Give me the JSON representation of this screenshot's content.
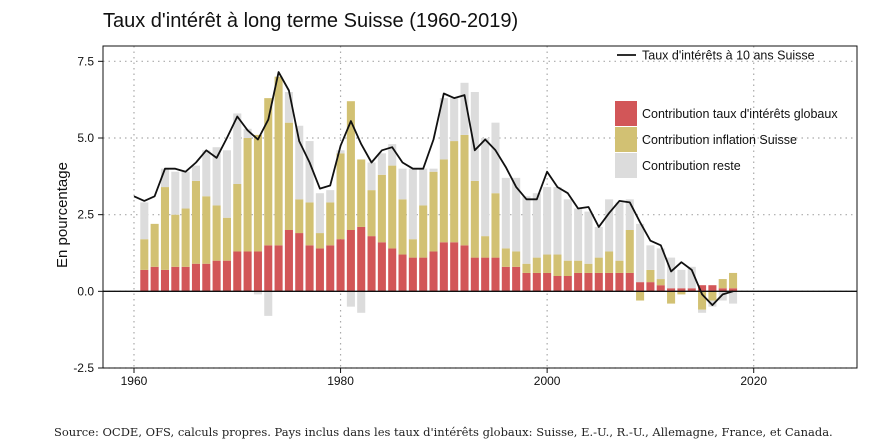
{
  "title": "Taux d'intérêt à long terme Suisse (1960-2019)",
  "source": "Source: OCDE, OFS, calculs propres. Pays inclus dans les taux d'intérêts globaux: Suisse, E.-U., R.-U., Allemagne, France, et Canada.",
  "chart_data": {
    "type": "bar",
    "stacked": true,
    "ylabel": "En pourcentage",
    "xlabel": "",
    "xlim": [
      1957,
      2030
    ],
    "ylim": [
      -2.5,
      8.0
    ],
    "x_ticks": [
      1960,
      1980,
      2000,
      2020
    ],
    "y_ticks": [
      -2.5,
      0.0,
      2.5,
      5.0,
      7.5
    ],
    "y_tick_labels": [
      "-2.5",
      "0.0",
      "2.5",
      "5.0",
      "7.5"
    ],
    "grid": "dotted",
    "legend_line": "top-right",
    "legend_bars": "right",
    "colors": {
      "global": "#d25658",
      "inflation": "#d2c173",
      "reste": "#dcdcdc",
      "line": "#111111"
    },
    "years": [
      1960,
      1961,
      1962,
      1963,
      1964,
      1965,
      1966,
      1967,
      1968,
      1969,
      1970,
      1971,
      1972,
      1973,
      1974,
      1975,
      1976,
      1977,
      1978,
      1979,
      1980,
      1981,
      1982,
      1983,
      1984,
      1985,
      1986,
      1987,
      1988,
      1989,
      1990,
      1991,
      1992,
      1993,
      1994,
      1995,
      1996,
      1997,
      1998,
      1999,
      2000,
      2001,
      2002,
      2003,
      2004,
      2005,
      2006,
      2007,
      2008,
      2009,
      2010,
      2011,
      2012,
      2013,
      2014,
      2015,
      2016,
      2017,
      2018
    ],
    "series": [
      {
        "name": "Contribution taux d'intérêts globaux",
        "key": "global",
        "values": [
          null,
          0.7,
          0.8,
          0.7,
          0.8,
          0.8,
          0.9,
          0.9,
          1.0,
          1.0,
          1.3,
          1.3,
          1.3,
          1.5,
          1.5,
          2.0,
          1.9,
          1.5,
          1.4,
          1.5,
          1.7,
          2.0,
          2.1,
          1.8,
          1.6,
          1.4,
          1.2,
          1.1,
          1.1,
          1.3,
          1.6,
          1.6,
          1.5,
          1.1,
          1.1,
          1.1,
          0.8,
          0.8,
          0.6,
          0.6,
          0.6,
          0.5,
          0.5,
          0.6,
          0.6,
          0.6,
          0.6,
          0.6,
          0.6,
          0.3,
          0.3,
          0.2,
          0.1,
          0.1,
          0.1,
          0.2,
          0.2,
          0.1,
          0.1
        ]
      },
      {
        "name": "Contribution inflation Suisse",
        "key": "inflation",
        "values": [
          null,
          1.0,
          1.4,
          2.7,
          1.7,
          1.9,
          2.7,
          2.2,
          1.8,
          1.4,
          2.2,
          3.7,
          3.8,
          4.8,
          5.5,
          3.5,
          1.1,
          1.4,
          0.5,
          1.4,
          2.8,
          4.2,
          2.2,
          1.5,
          2.2,
          2.7,
          1.8,
          0.6,
          1.7,
          2.6,
          2.7,
          3.3,
          3.6,
          2.5,
          0.7,
          2.1,
          0.6,
          0.5,
          0.3,
          0.5,
          0.6,
          0.7,
          0.5,
          0.4,
          0.3,
          0.5,
          0.7,
          0.4,
          1.4,
          -0.3,
          0.4,
          0.2,
          -0.4,
          -0.1,
          0.0,
          -0.6,
          -0.3,
          0.3,
          0.5
        ]
      },
      {
        "name": "Contribution reste",
        "key": "reste",
        "values": [
          null,
          1.2,
          0.0,
          0.6,
          1.4,
          1.2,
          0.5,
          1.5,
          1.9,
          2.2,
          2.3,
          0.3,
          -0.1,
          -0.8,
          0.0,
          1.0,
          2.4,
          2.0,
          1.3,
          0.4,
          0.1,
          -0.5,
          -0.7,
          0.9,
          0.7,
          0.7,
          1.0,
          2.3,
          1.2,
          0.1,
          2.0,
          1.4,
          1.7,
          2.9,
          3.2,
          2.3,
          2.3,
          2.4,
          2.2,
          2.1,
          2.2,
          2.2,
          2.0,
          1.7,
          1.7,
          1.0,
          1.7,
          1.9,
          1.0,
          1.9,
          0.8,
          1.0,
          1.0,
          0.6,
          0.7,
          -0.1,
          -0.2,
          -0.3,
          -0.4
        ]
      },
      {
        "name": "Taux d'intérêts à 10 ans Suisse",
        "key": "line",
        "type": "line",
        "values": [
          3.1,
          2.95,
          3.1,
          4.0,
          4.0,
          3.9,
          4.2,
          4.6,
          4.35,
          5.0,
          5.7,
          5.25,
          4.95,
          5.6,
          7.15,
          6.55,
          4.9,
          4.2,
          3.35,
          3.45,
          4.75,
          5.55,
          4.8,
          4.2,
          4.6,
          4.7,
          4.2,
          4.0,
          4.0,
          4.95,
          6.45,
          6.3,
          6.4,
          4.6,
          4.95,
          4.6,
          4.05,
          3.4,
          3.0,
          3.0,
          3.9,
          3.4,
          3.2,
          2.7,
          2.75,
          2.1,
          2.55,
          2.95,
          2.9,
          2.25,
          1.65,
          1.5,
          0.65,
          0.95,
          0.7,
          -0.1,
          -0.45,
          -0.1,
          0.0
        ]
      }
    ]
  }
}
